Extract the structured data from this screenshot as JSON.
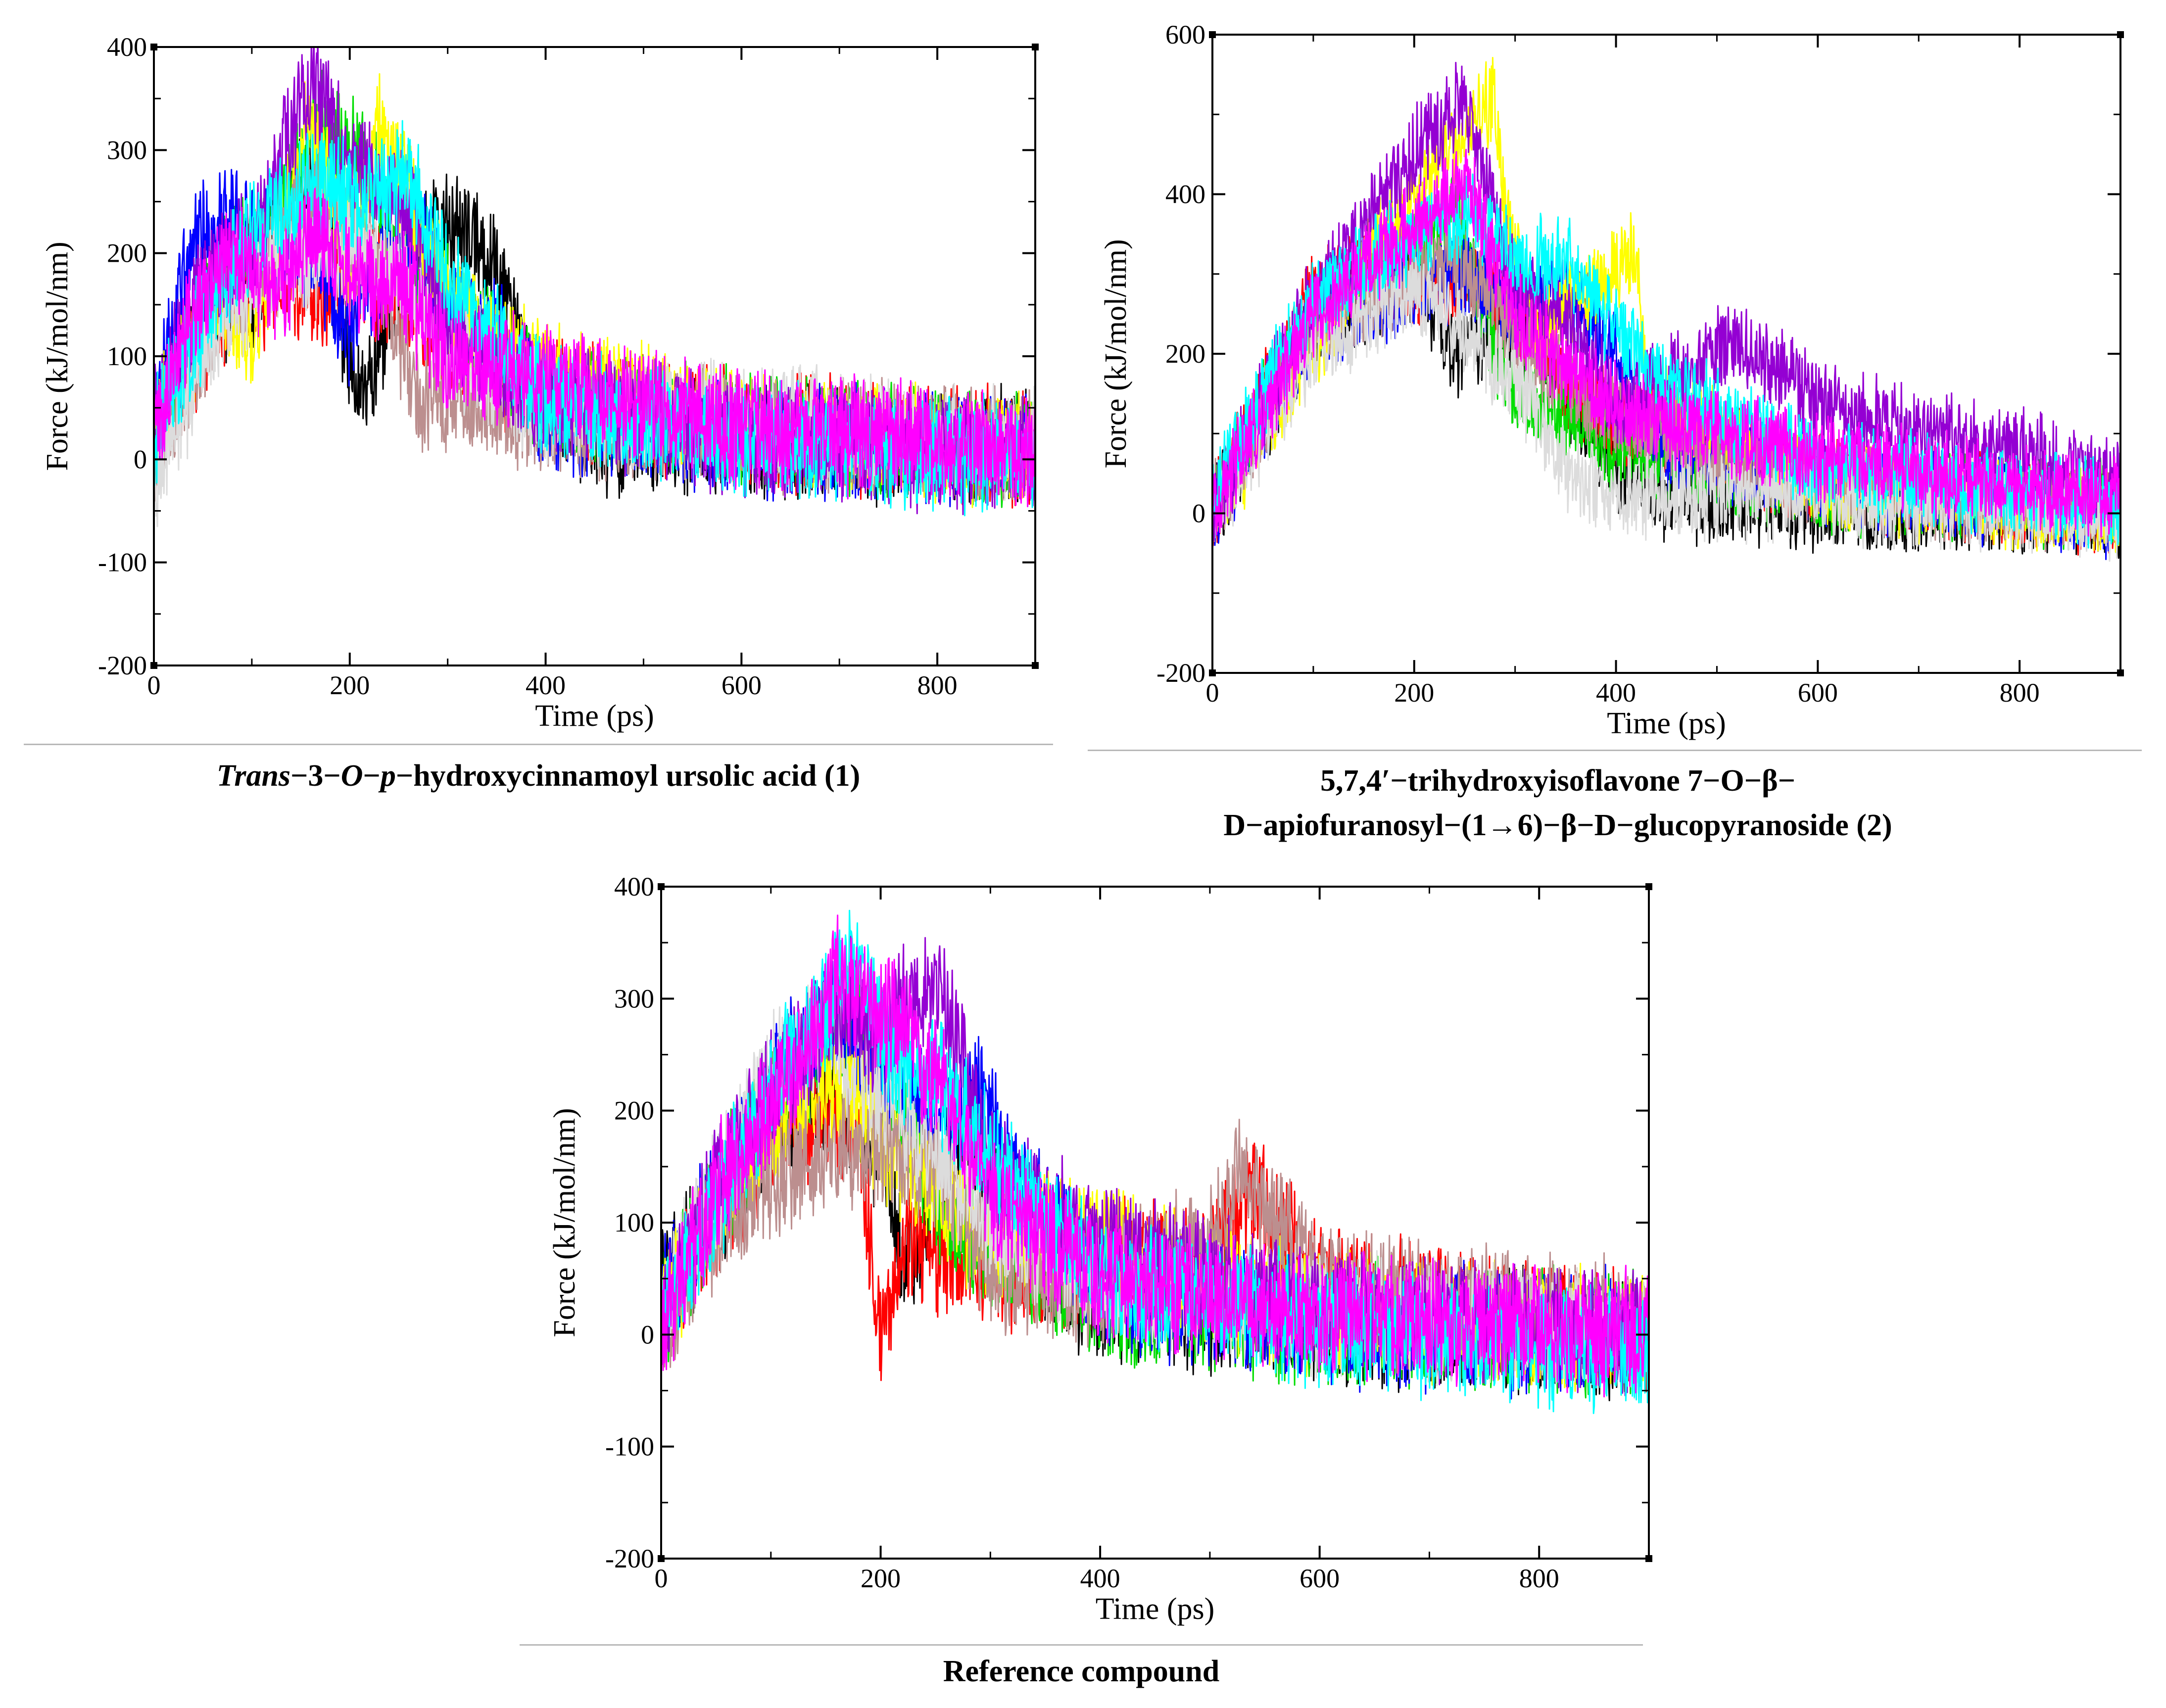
{
  "series_names": [
    "black",
    "red",
    "green",
    "blue",
    "yellow",
    "brown",
    "grey",
    "violet",
    "cyan",
    "magenta"
  ],
  "series_colors": {
    "black": "#000000",
    "red": "#ff0000",
    "green": "#00dd00",
    "blue": "#0000ff",
    "yellow": "#ffff00",
    "brown": "#bc8f8f",
    "grey": "#dcdcdc",
    "violet": "#9400d3",
    "cyan": "#00ffff",
    "magenta": "#ff00ff"
  },
  "chart_data": [
    {
      "type": "line",
      "title": "",
      "xlabel": "Time (ps)",
      "ylabel": "Force (kJ/mol/nm)",
      "xlim": [
        0,
        900
      ],
      "ylim": [
        -200,
        400
      ],
      "xticks": [
        "0",
        "200",
        "400",
        "600",
        "800"
      ],
      "yticks": [
        "-200",
        "-100",
        "0",
        "100",
        "200",
        "300",
        "400"
      ],
      "caption_parts": [
        "Trans",
        "−3−",
        "O",
        "−",
        "p",
        "−hydroxycinnamoyl ursolic acid (1)"
      ],
      "series": [
        {
          "name": "black",
          "x": [
            0,
            50,
            100,
            160,
            200,
            215,
            250,
            300,
            350,
            380,
            450,
            600,
            900
          ],
          "y": [
            30,
            150,
            150,
            290,
            100,
            60,
            180,
            230,
            190,
            80,
            20,
            20,
            10
          ]
        },
        {
          "name": "red",
          "x": [
            0,
            60,
            100,
            150,
            200,
            250,
            300,
            400,
            600,
            900
          ],
          "y": [
            20,
            130,
            170,
            160,
            180,
            160,
            120,
            60,
            30,
            10
          ]
        },
        {
          "name": "green",
          "x": [
            0,
            60,
            120,
            170,
            220,
            250,
            300,
            400,
            600,
            900
          ],
          "y": [
            30,
            170,
            220,
            330,
            280,
            200,
            150,
            60,
            30,
            10
          ]
        },
        {
          "name": "blue",
          "x": [
            0,
            40,
            80,
            160,
            200,
            250,
            280,
            300,
            350,
            400,
            600,
            900
          ],
          "y": [
            40,
            210,
            230,
            200,
            130,
            200,
            210,
            140,
            120,
            40,
            20,
            10
          ]
        },
        {
          "name": "yellow",
          "x": [
            0,
            60,
            100,
            160,
            200,
            230,
            260,
            300,
            400,
            600,
            900
          ],
          "y": [
            30,
            150,
            120,
            330,
            200,
            320,
            260,
            150,
            80,
            30,
            10
          ]
        },
        {
          "name": "brown",
          "x": [
            0,
            40,
            80,
            160,
            230,
            270,
            300,
            400,
            600,
            900
          ],
          "y": [
            10,
            80,
            160,
            260,
            190,
            60,
            60,
            40,
            30,
            10
          ]
        },
        {
          "name": "grey",
          "x": [
            0,
            60,
            120,
            200,
            250,
            300,
            400,
            600,
            900
          ],
          "y": [
            -20,
            120,
            190,
            200,
            180,
            110,
            50,
            40,
            10
          ]
        },
        {
          "name": "violet",
          "x": [
            0,
            50,
            100,
            160,
            200,
            260,
            300,
            400,
            600,
            900
          ],
          "y": [
            40,
            170,
            210,
            370,
            290,
            250,
            130,
            60,
            20,
            0
          ]
        },
        {
          "name": "cyan",
          "x": [
            0,
            60,
            100,
            160,
            210,
            260,
            300,
            400,
            600,
            900
          ],
          "y": [
            30,
            160,
            220,
            270,
            250,
            280,
            170,
            60,
            20,
            0
          ]
        },
        {
          "name": "magenta",
          "x": [
            0,
            40,
            80,
            130,
            160,
            200,
            260,
            300,
            400,
            600,
            900
          ],
          "y": [
            20,
            150,
            200,
            160,
            230,
            180,
            160,
            100,
            80,
            30,
            10
          ]
        }
      ]
    },
    {
      "type": "line",
      "title": "",
      "xlabel": "Time (ps)",
      "ylabel": "Force (kJ/mol/nm)",
      "xlim": [
        0,
        900
      ],
      "ylim": [
        -200,
        600
      ],
      "xticks": [
        "0",
        "200",
        "400",
        "600",
        "800"
      ],
      "yticks": [
        "-200",
        "0",
        "200",
        "400",
        "600"
      ],
      "caption_line1": "5,7,4′−trihydroxyisoflavone 7−O−β−",
      "caption_line2": "D−apiofuranosyl−(1→6)−β−D−glucopyranoside (2)",
      "series": [
        {
          "name": "black",
          "x": [
            0,
            100,
            200,
            240,
            300,
            350,
            400,
            450,
            600,
            900
          ],
          "y": [
            0,
            230,
            300,
            200,
            240,
            150,
            60,
            20,
            10,
            0
          ]
        },
        {
          "name": "red",
          "x": [
            0,
            100,
            150,
            200,
            250,
            300,
            350,
            400,
            600,
            900
          ],
          "y": [
            0,
            280,
            310,
            280,
            300,
            260,
            160,
            120,
            40,
            0
          ]
        },
        {
          "name": "green",
          "x": [
            0,
            100,
            200,
            240,
            280,
            300,
            350,
            400,
            600,
            900
          ],
          "y": [
            10,
            250,
            330,
            380,
            200,
            150,
            120,
            80,
            30,
            10
          ]
        },
        {
          "name": "blue",
          "x": [
            0,
            100,
            200,
            250,
            300,
            350,
            400,
            450,
            600,
            900
          ],
          "y": [
            0,
            230,
            280,
            300,
            250,
            280,
            200,
            80,
            40,
            0
          ]
        },
        {
          "name": "yellow",
          "x": [
            0,
            100,
            200,
            250,
            280,
            290,
            320,
            400,
            420,
            430,
            600,
            900
          ],
          "y": [
            0,
            210,
            400,
            480,
            520,
            370,
            220,
            310,
            330,
            150,
            30,
            0
          ]
        },
        {
          "name": "brown",
          "x": [
            0,
            100,
            200,
            250,
            300,
            400,
            600,
            900
          ],
          "y": [
            0,
            240,
            300,
            320,
            220,
            120,
            40,
            0
          ]
        },
        {
          "name": "grey",
          "x": [
            0,
            100,
            200,
            300,
            350,
            400,
            600,
            900
          ],
          "y": [
            0,
            200,
            280,
            170,
            60,
            20,
            20,
            0
          ]
        },
        {
          "name": "violet",
          "x": [
            0,
            100,
            200,
            250,
            300,
            350,
            400,
            500,
            520,
            600,
            900
          ],
          "y": [
            10,
            270,
            450,
            520,
            280,
            250,
            130,
            200,
            220,
            140,
            40
          ]
        },
        {
          "name": "cyan",
          "x": [
            0,
            100,
            200,
            260,
            300,
            350,
            400,
            450,
            600,
            900
          ],
          "y": [
            20,
            270,
            350,
            380,
            310,
            320,
            230,
            160,
            60,
            10
          ]
        },
        {
          "name": "magenta",
          "x": [
            0,
            100,
            200,
            250,
            300,
            400,
            600,
            900
          ],
          "y": [
            0,
            250,
            360,
            420,
            250,
            130,
            70,
            20
          ]
        }
      ]
    },
    {
      "type": "line",
      "title": "",
      "xlabel": "Time (ps)",
      "ylabel": "Force (kJ/mol/nm)",
      "xlim": [
        0,
        900
      ],
      "ylim": [
        -200,
        400
      ],
      "xticks": [
        "0",
        "200",
        "400",
        "600",
        "800"
      ],
      "yticks": [
        "-200",
        "-100",
        "0",
        "100",
        "200",
        "300",
        "400"
      ],
      "caption": "Reference compound",
      "series": [
        {
          "name": "black",
          "x": [
            0,
            50,
            100,
            150,
            200,
            220,
            280,
            300,
            350,
            400,
            600,
            900
          ],
          "y": [
            50,
            100,
            190,
            220,
            160,
            60,
            190,
            140,
            60,
            30,
            10,
            0
          ]
        },
        {
          "name": "red",
          "x": [
            0,
            50,
            100,
            150,
            180,
            200,
            220,
            300,
            400,
            500,
            540,
            600,
            900
          ],
          "y": [
            20,
            110,
            170,
            200,
            180,
            0,
            80,
            60,
            60,
            70,
            130,
            40,
            0
          ]
        },
        {
          "name": "green",
          "x": [
            0,
            60,
            120,
            180,
            220,
            260,
            300,
            400,
            600,
            900
          ],
          "y": [
            10,
            140,
            230,
            280,
            200,
            100,
            80,
            30,
            10,
            0
          ]
        },
        {
          "name": "blue",
          "x": [
            0,
            50,
            100,
            150,
            200,
            250,
            290,
            320,
            400,
            600,
            900
          ],
          "y": [
            30,
            120,
            220,
            280,
            240,
            180,
            220,
            140,
            40,
            10,
            0
          ]
        },
        {
          "name": "yellow",
          "x": [
            0,
            60,
            120,
            170,
            200,
            250,
            300,
            400,
            450,
            600,
            900
          ],
          "y": [
            20,
            130,
            210,
            230,
            170,
            130,
            80,
            90,
            60,
            20,
            0
          ]
        },
        {
          "name": "brown",
          "x": [
            0,
            60,
            120,
            200,
            260,
            300,
            400,
            500,
            530,
            600,
            900
          ],
          "y": [
            0,
            110,
            150,
            170,
            140,
            60,
            50,
            80,
            150,
            40,
            10
          ]
        },
        {
          "name": "grey",
          "x": [
            0,
            60,
            100,
            150,
            200,
            300,
            400,
            600,
            900
          ],
          "y": [
            20,
            150,
            240,
            270,
            220,
            100,
            50,
            20,
            0
          ]
        },
        {
          "name": "violet",
          "x": [
            0,
            60,
            120,
            170,
            200,
            230,
            260,
            300,
            400,
            600,
            900
          ],
          "y": [
            20,
            150,
            250,
            300,
            260,
            310,
            300,
            150,
            80,
            20,
            0
          ]
        },
        {
          "name": "cyan",
          "x": [
            0,
            60,
            120,
            180,
            210,
            250,
            300,
            400,
            600,
            900
          ],
          "y": [
            10,
            140,
            250,
            340,
            250,
            230,
            160,
            50,
            10,
            -20
          ]
        },
        {
          "name": "magenta",
          "x": [
            0,
            60,
            120,
            160,
            200,
            260,
            300,
            400,
            600,
            900
          ],
          "y": [
            0,
            150,
            230,
            320,
            290,
            220,
            120,
            50,
            20,
            0
          ]
        }
      ]
    }
  ]
}
